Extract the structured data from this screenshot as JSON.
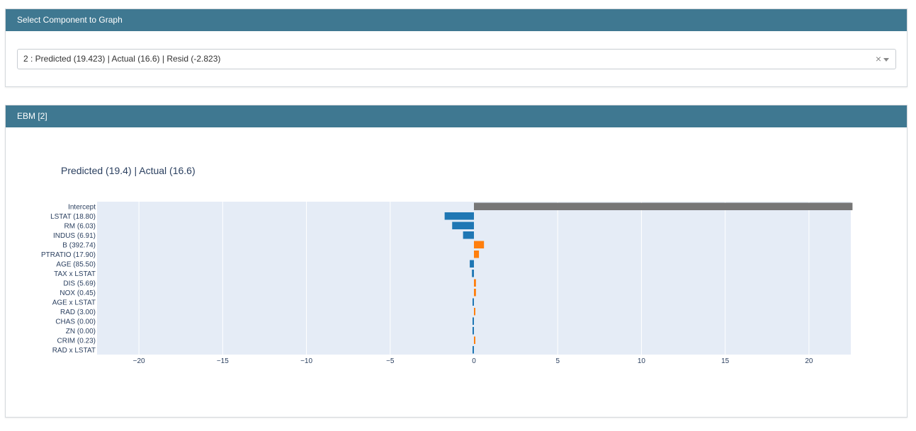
{
  "panel1": {
    "header": "Select Component to Graph",
    "select_value": "2 : Predicted (19.423) | Actual (16.6) | Resid (-2.823)",
    "clear_glyph": "×"
  },
  "panel2": {
    "header": "EBM [2]"
  },
  "chart_data": {
    "type": "bar",
    "orientation": "horizontal",
    "title": "Predicted (19.4) | Actual (16.6)",
    "xlim": [
      -22.5,
      22.5
    ],
    "xticks": [
      -20,
      -15,
      -10,
      -5,
      0,
      5,
      10,
      15,
      20
    ],
    "xtick_labels": [
      "−20",
      "−15",
      "−10",
      "−5",
      "0",
      "5",
      "10",
      "15",
      "20"
    ],
    "grid": true,
    "colors": {
      "intercept": "#767676",
      "positive": "#ff7f0e",
      "negative": "#1f77b4",
      "plot_bg": "#e5ecf6"
    },
    "categories": [
      "Intercept",
      "LSTAT (18.80)",
      "RM (6.03)",
      "INDUS (6.91)",
      "B (392.74)",
      "PTRATIO (17.90)",
      "AGE (85.50)",
      "TAX x LSTAT",
      "DIS (5.69)",
      "NOX (0.45)",
      "AGE x LSTAT",
      "RAD (3.00)",
      "CHAS (0.00)",
      "ZN (0.00)",
      "CRIM (0.23)",
      "RAD x LSTAT"
    ],
    "values": [
      22.6,
      -1.75,
      -1.3,
      -0.65,
      0.6,
      0.3,
      -0.25,
      -0.12,
      0.12,
      0.12,
      -0.08,
      0.08,
      -0.06,
      -0.06,
      0.07,
      -0.04
    ]
  }
}
